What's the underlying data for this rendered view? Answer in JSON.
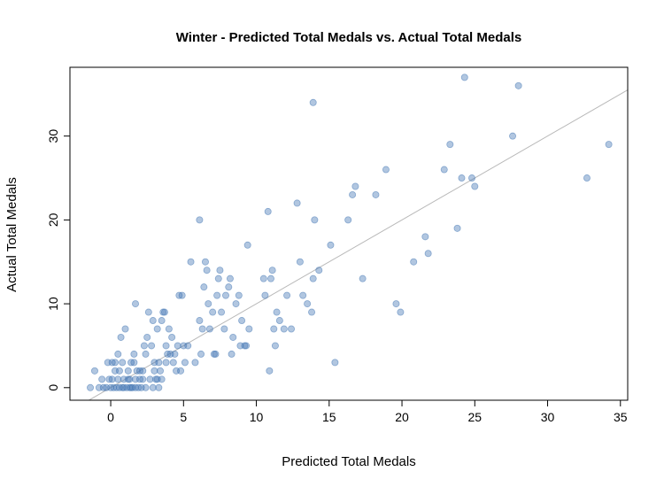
{
  "chart_data": {
    "type": "scatter",
    "title": "Winter - Predicted Total Medals vs. Actual Total Medals",
    "xlabel": "Predicted Total Medals",
    "ylabel": "Actual Total Medals",
    "xlim": [
      -2.8,
      35.5
    ],
    "ylim": [
      -1.5,
      38.2
    ],
    "x_ticks": [
      0,
      5,
      10,
      15,
      20,
      25,
      30,
      35
    ],
    "y_ticks": [
      0,
      10,
      20,
      30
    ],
    "reference_line": {
      "type": "y=x",
      "color": "#b8b8b8"
    },
    "point_color": "#4678b4",
    "grid": false,
    "points": [
      [
        -1.4,
        0
      ],
      [
        -1.1,
        2
      ],
      [
        -0.6,
        1
      ],
      [
        -0.2,
        3
      ],
      [
        0.1,
        3
      ],
      [
        0.3,
        2
      ],
      [
        0.5,
        4
      ],
      [
        0.7,
        6
      ],
      [
        1.0,
        7
      ],
      [
        0.8,
        3
      ],
      [
        1.2,
        2
      ],
      [
        1.4,
        3
      ],
      [
        1.7,
        10
      ],
      [
        1.6,
        4
      ],
      [
        1.8,
        2
      ],
      [
        2.2,
        2
      ],
      [
        2.3,
        5
      ],
      [
        2.4,
        4
      ],
      [
        2.5,
        6
      ],
      [
        2.6,
        9
      ],
      [
        2.8,
        5
      ],
      [
        3.0,
        3
      ],
      [
        3.2,
        7
      ],
      [
        3.4,
        2
      ],
      [
        3.5,
        8
      ],
      [
        3.6,
        9
      ],
      [
        3.7,
        9
      ],
      [
        3.8,
        5
      ],
      [
        4.0,
        7
      ],
      [
        4.2,
        6
      ],
      [
        4.4,
        4
      ],
      [
        4.6,
        5
      ],
      [
        4.7,
        11
      ],
      [
        4.9,
        11
      ],
      [
        4.3,
        3
      ],
      [
        4.8,
        2
      ],
      [
        5.3,
        5
      ],
      [
        5.5,
        15
      ],
      [
        5.1,
        3
      ],
      [
        6.1,
        20
      ],
      [
        6.3,
        7
      ],
      [
        6.4,
        12
      ],
      [
        6.5,
        15
      ],
      [
        6.6,
        14
      ],
      [
        6.7,
        10
      ],
      [
        6.8,
        7
      ],
      [
        7.0,
        9
      ],
      [
        7.1,
        4
      ],
      [
        7.3,
        11
      ],
      [
        7.4,
        13
      ],
      [
        7.5,
        14
      ],
      [
        7.6,
        9
      ],
      [
        7.8,
        7
      ],
      [
        7.9,
        11
      ],
      [
        8.1,
        12
      ],
      [
        8.2,
        13
      ],
      [
        8.3,
        4
      ],
      [
        8.4,
        6
      ],
      [
        8.6,
        10
      ],
      [
        8.8,
        11
      ],
      [
        9.0,
        8
      ],
      [
        9.2,
        5
      ],
      [
        9.4,
        17
      ],
      [
        9.5,
        7
      ],
      [
        10.5,
        13
      ],
      [
        10.6,
        11
      ],
      [
        10.8,
        21
      ],
      [
        11.0,
        13
      ],
      [
        11.1,
        14
      ],
      [
        11.2,
        7
      ],
      [
        10.9,
        2
      ],
      [
        11.3,
        5
      ],
      [
        11.4,
        9
      ],
      [
        11.6,
        8
      ],
      [
        11.9,
        7
      ],
      [
        12.1,
        11
      ],
      [
        12.4,
        7
      ],
      [
        12.8,
        22
      ],
      [
        13.0,
        15
      ],
      [
        13.2,
        11
      ],
      [
        13.5,
        10
      ],
      [
        13.8,
        9
      ],
      [
        13.9,
        13
      ],
      [
        14.0,
        20
      ],
      [
        14.3,
        14
      ],
      [
        13.9,
        34
      ],
      [
        15.1,
        17
      ],
      [
        15.4,
        3
      ],
      [
        16.3,
        20
      ],
      [
        16.6,
        23
      ],
      [
        16.8,
        24
      ],
      [
        17.3,
        13
      ],
      [
        18.2,
        23
      ],
      [
        18.9,
        26
      ],
      [
        19.6,
        10
      ],
      [
        19.9,
        9
      ],
      [
        20.8,
        15
      ],
      [
        21.6,
        18
      ],
      [
        21.8,
        16
      ],
      [
        22.9,
        26
      ],
      [
        23.3,
        29
      ],
      [
        23.8,
        19
      ],
      [
        24.1,
        25
      ],
      [
        24.3,
        37
      ],
      [
        24.8,
        25
      ],
      [
        25.0,
        24
      ],
      [
        27.6,
        30
      ],
      [
        28.0,
        36
      ],
      [
        32.7,
        25
      ],
      [
        34.2,
        29
      ],
      [
        -0.8,
        0
      ],
      [
        -0.5,
        0
      ],
      [
        -0.3,
        0
      ],
      [
        0.0,
        0
      ],
      [
        0.2,
        0
      ],
      [
        0.4,
        0
      ],
      [
        0.6,
        0
      ],
      [
        0.9,
        0
      ],
      [
        1.1,
        0
      ],
      [
        1.3,
        0
      ],
      [
        1.5,
        0
      ],
      [
        1.7,
        0
      ],
      [
        1.9,
        0
      ],
      [
        2.1,
        0
      ],
      [
        0.1,
        1
      ],
      [
        0.5,
        1
      ],
      [
        0.9,
        1
      ],
      [
        1.3,
        1
      ],
      [
        1.7,
        1
      ],
      [
        2.0,
        1
      ],
      [
        2.9,
        0
      ],
      [
        3.3,
        0
      ],
      [
        3.5,
        1
      ],
      [
        2.7,
        1
      ],
      [
        3.0,
        2
      ],
      [
        3.8,
        3
      ],
      [
        4.5,
        2
      ],
      [
        5.0,
        5
      ],
      [
        5.8,
        3
      ],
      [
        6.2,
        4
      ],
      [
        7.2,
        4
      ],
      [
        8.9,
        5
      ],
      [
        9.3,
        5
      ],
      [
        6.1,
        8
      ],
      [
        3.1,
        1
      ],
      [
        3.3,
        3
      ],
      [
        0.3,
        3
      ],
      [
        1.6,
        3
      ],
      [
        3.9,
        4
      ],
      [
        2.9,
        8
      ],
      [
        0.6,
        2
      ],
      [
        1.2,
        1
      ],
      [
        2.2,
        1
      ],
      [
        3.2,
        1
      ],
      [
        -0.1,
        1
      ],
      [
        0.8,
        0
      ],
      [
        1.4,
        0
      ],
      [
        2.4,
        0
      ],
      [
        2.0,
        2
      ],
      [
        4.1,
        4
      ]
    ]
  }
}
